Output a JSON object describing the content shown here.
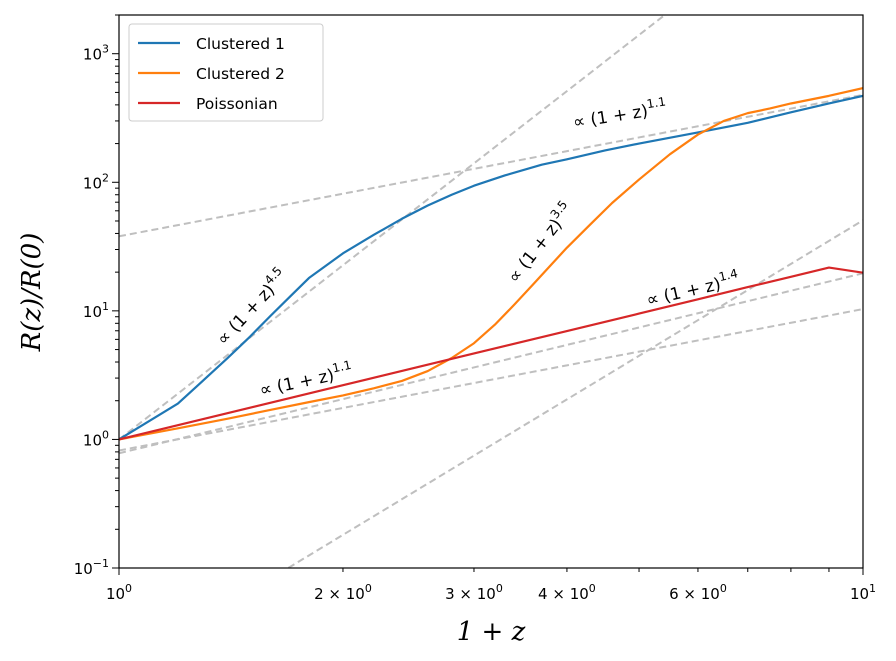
{
  "chart_data": {
    "type": "line",
    "xscale": "log",
    "yscale": "log",
    "xlim": [
      1,
      10
    ],
    "ylim": [
      0.1,
      2000
    ],
    "xlabel": "1 + z",
    "ylabel": "R(z)/R(0)",
    "x_ticks": [
      {
        "value": 1,
        "base": "10",
        "exp": "0"
      },
      {
        "value": 2,
        "base": "2 × 10",
        "exp": "0"
      },
      {
        "value": 3,
        "base": "3 × 10",
        "exp": "0"
      },
      {
        "value": 4,
        "base": "4 × 10",
        "exp": "0"
      },
      {
        "value": 6,
        "base": "6 × 10",
        "exp": "0"
      },
      {
        "value": 10,
        "base": "10",
        "exp": "1"
      }
    ],
    "y_ticks": [
      {
        "value": 0.1,
        "base": "10",
        "exp": "−1"
      },
      {
        "value": 1,
        "base": "10",
        "exp": "0"
      },
      {
        "value": 10,
        "base": "10",
        "exp": "1"
      },
      {
        "value": 100,
        "base": "10",
        "exp": "2"
      },
      {
        "value": 1000,
        "base": "10",
        "exp": "3"
      }
    ],
    "series": [
      {
        "name": "Clustered 1",
        "color": "#1f77b4",
        "x": [
          1.0,
          1.1,
          1.2,
          1.3,
          1.4,
          1.5,
          1.6,
          1.7,
          1.8,
          2.0,
          2.2,
          2.4,
          2.6,
          2.8,
          3.0,
          3.3,
          3.7,
          4.0,
          4.5,
          5.0,
          6.0,
          7.0,
          8.0,
          9.0,
          10.0
        ],
        "y": [
          1.0,
          1.4,
          1.9,
          2.9,
          4.3,
          6.3,
          9.2,
          13,
          18,
          28,
          39,
          52,
          66,
          80,
          94,
          113,
          137,
          151,
          177,
          200,
          244,
          290,
          350,
          410,
          470
        ]
      },
      {
        "name": "Clustered 2",
        "color": "#ff7f0e",
        "x": [
          1.0,
          1.2,
          1.4,
          1.6,
          1.8,
          2.0,
          2.2,
          2.4,
          2.6,
          2.8,
          3.0,
          3.2,
          3.4,
          3.6,
          3.8,
          4.0,
          4.3,
          4.6,
          5.0,
          5.5,
          6.0,
          6.5,
          7.0,
          7.5,
          8.0,
          9.0,
          10.0
        ],
        "y": [
          1.0,
          1.22,
          1.45,
          1.7,
          1.95,
          2.2,
          2.5,
          2.85,
          3.4,
          4.3,
          5.6,
          7.8,
          11.2,
          16,
          22.5,
          31,
          47,
          69,
          105,
          165,
          235,
          300,
          345,
          375,
          410,
          470,
          540
        ]
      },
      {
        "name": "Poissonian",
        "color": "#d62728",
        "x": [
          1.0,
          2.0,
          3.0,
          4.0,
          5.0,
          6.0,
          7.0,
          8.0,
          9.0,
          10.0
        ],
        "y": [
          1.0,
          2.64,
          4.66,
          6.96,
          9.52,
          12.3,
          15.3,
          18.4,
          21.7,
          19.8
        ]
      }
    ],
    "reference_lines": [
      {
        "label_prefix": "∝ (1 + z)",
        "exponent": "1.1",
        "slope": 1.1,
        "y_at_1": 38
      },
      {
        "label_prefix": "∝ (1 + z)",
        "exponent": "4.5",
        "slope": 4.5,
        "y_at_1": 1.0
      },
      {
        "label_prefix": "∝ (1 + z)",
        "exponent": "3.5",
        "slope": 3.5,
        "y_at_1": 0.016
      },
      {
        "label_prefix": "∝ (1 + z)",
        "exponent": "1.4",
        "slope": 1.4,
        "y_at_1": 0.78
      },
      {
        "label_prefix": "∝ (1 + z)",
        "exponent": "1.1",
        "slope": 1.1,
        "y_at_1": 0.82
      }
    ],
    "legend": {
      "placement": "top-left",
      "entries": [
        "Clustered 1",
        "Clustered 2",
        "Poissonian"
      ]
    },
    "ref_line_color": "#bfbfbf",
    "grid": false
  }
}
